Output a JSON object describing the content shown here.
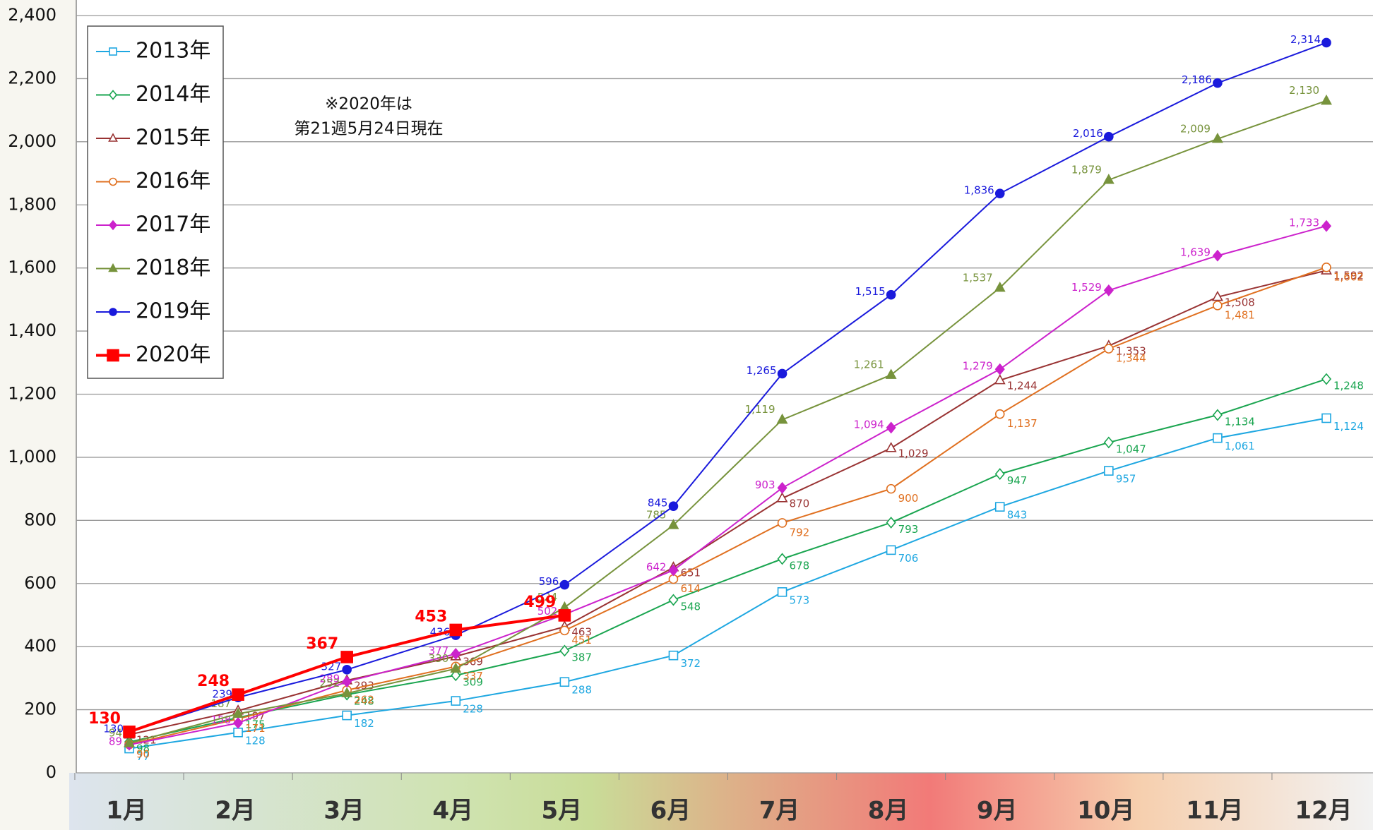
{
  "chart_data": {
    "type": "line",
    "annotation": [
      "※2020年は",
      "第21週5月24日現在"
    ],
    "categories": [
      "1月",
      "2月",
      "3月",
      "4月",
      "5月",
      "6月",
      "7月",
      "8月",
      "9月",
      "10月",
      "11月",
      "12月"
    ],
    "ylim": [
      0,
      2400
    ],
    "yticks": [
      0,
      200,
      400,
      600,
      800,
      {
        "value": 1000,
        "label": "1,000"
      },
      {
        "value": 1200,
        "label": "1,200"
      },
      {
        "value": 1400,
        "label": "1,400"
      },
      {
        "value": 1600,
        "label": "1,600"
      },
      {
        "value": 1800,
        "label": "1,800"
      },
      {
        "value": 2000,
        "label": "2,000"
      },
      {
        "value": 2200,
        "label": "2,200"
      },
      {
        "value": 2400,
        "label": "2,400"
      }
    ],
    "grid": true,
    "legend": "upper left",
    "series": [
      {
        "name": "2013年",
        "color": "#1ea7e1",
        "marker": "square-open",
        "values": [
          77,
          128,
          182,
          228,
          288,
          372,
          573,
          706,
          843,
          957,
          1061,
          1124
        ],
        "value_labels": [
          "77",
          "128",
          "182",
          "228",
          "288",
          "372",
          "573",
          "706",
          "843",
          "957",
          "1,061",
          "1,124"
        ]
      },
      {
        "name": "2014年",
        "color": "#1aa550",
        "marker": "diamond-open",
        "values": [
          98,
          175,
          248,
          309,
          387,
          548,
          678,
          793,
          947,
          1047,
          1134,
          1248
        ],
        "value_labels": [
          "98",
          "175",
          "248",
          "309",
          "387",
          "548",
          "678",
          "793",
          "947",
          "1,047",
          "1,134",
          "1,248"
        ]
      },
      {
        "name": "2015年",
        "color": "#993333",
        "marker": "triangle-open",
        "values": [
          121,
          197,
          293,
          369,
          463,
          651,
          870,
          1029,
          1244,
          1353,
          1508,
          1592
        ],
        "value_labels": [
          "121",
          "197",
          "293",
          "369",
          "463",
          "651",
          "870",
          "1,029",
          "1,244",
          "1,353",
          "1,508",
          "1,592"
        ]
      },
      {
        "name": "2016年",
        "color": "#e07020",
        "marker": "circle-open",
        "values": [
          90,
          171,
          262,
          337,
          451,
          614,
          792,
          900,
          1137,
          1344,
          1481,
          1602
        ],
        "value_labels": [
          "90",
          "171",
          "262",
          "337",
          "451",
          "614",
          "792",
          "900",
          "1,137",
          "1,344",
          "1,481",
          "1,602"
        ]
      },
      {
        "name": "2017年",
        "color": "#cc22cc",
        "marker": "diamond",
        "values": [
          89,
          158,
          289,
          377,
          502,
          642,
          903,
          1094,
          1279,
          1529,
          1639,
          1733
        ],
        "value_labels": [
          "89",
          "158",
          "289",
          "377",
          "502",
          "642",
          "903",
          "1,094",
          "1,279",
          "1,529",
          "1,639",
          "1,733"
        ]
      },
      {
        "name": "2018年",
        "color": "#77933c",
        "marker": "triangle",
        "values": [
          94,
          187,
          252,
          330,
          524,
          785,
          1119,
          1261,
          1537,
          1879,
          2009,
          2130
        ],
        "value_labels": [
          "94",
          "187",
          "252",
          "330",
          "524",
          "785",
          "1,119",
          "1,261",
          "1,537",
          "1,879",
          "2,009",
          "2,130"
        ]
      },
      {
        "name": "2019年",
        "color": "#1a1adc",
        "marker": "circle",
        "values": [
          130,
          239,
          327,
          436,
          596,
          845,
          1265,
          1515,
          1836,
          2016,
          2186,
          2314
        ],
        "value_labels": [
          "130",
          "239",
          "327",
          "436",
          "596",
          "845",
          "1,265",
          "1,515",
          "1,836",
          "2,016",
          "2,186",
          "2,314"
        ]
      },
      {
        "name": "2020年",
        "color": "#ff0000",
        "marker": "square",
        "values": [
          130,
          248,
          367,
          453,
          499,
          null,
          null,
          null,
          null,
          null,
          null,
          null
        ]
      }
    ]
  }
}
